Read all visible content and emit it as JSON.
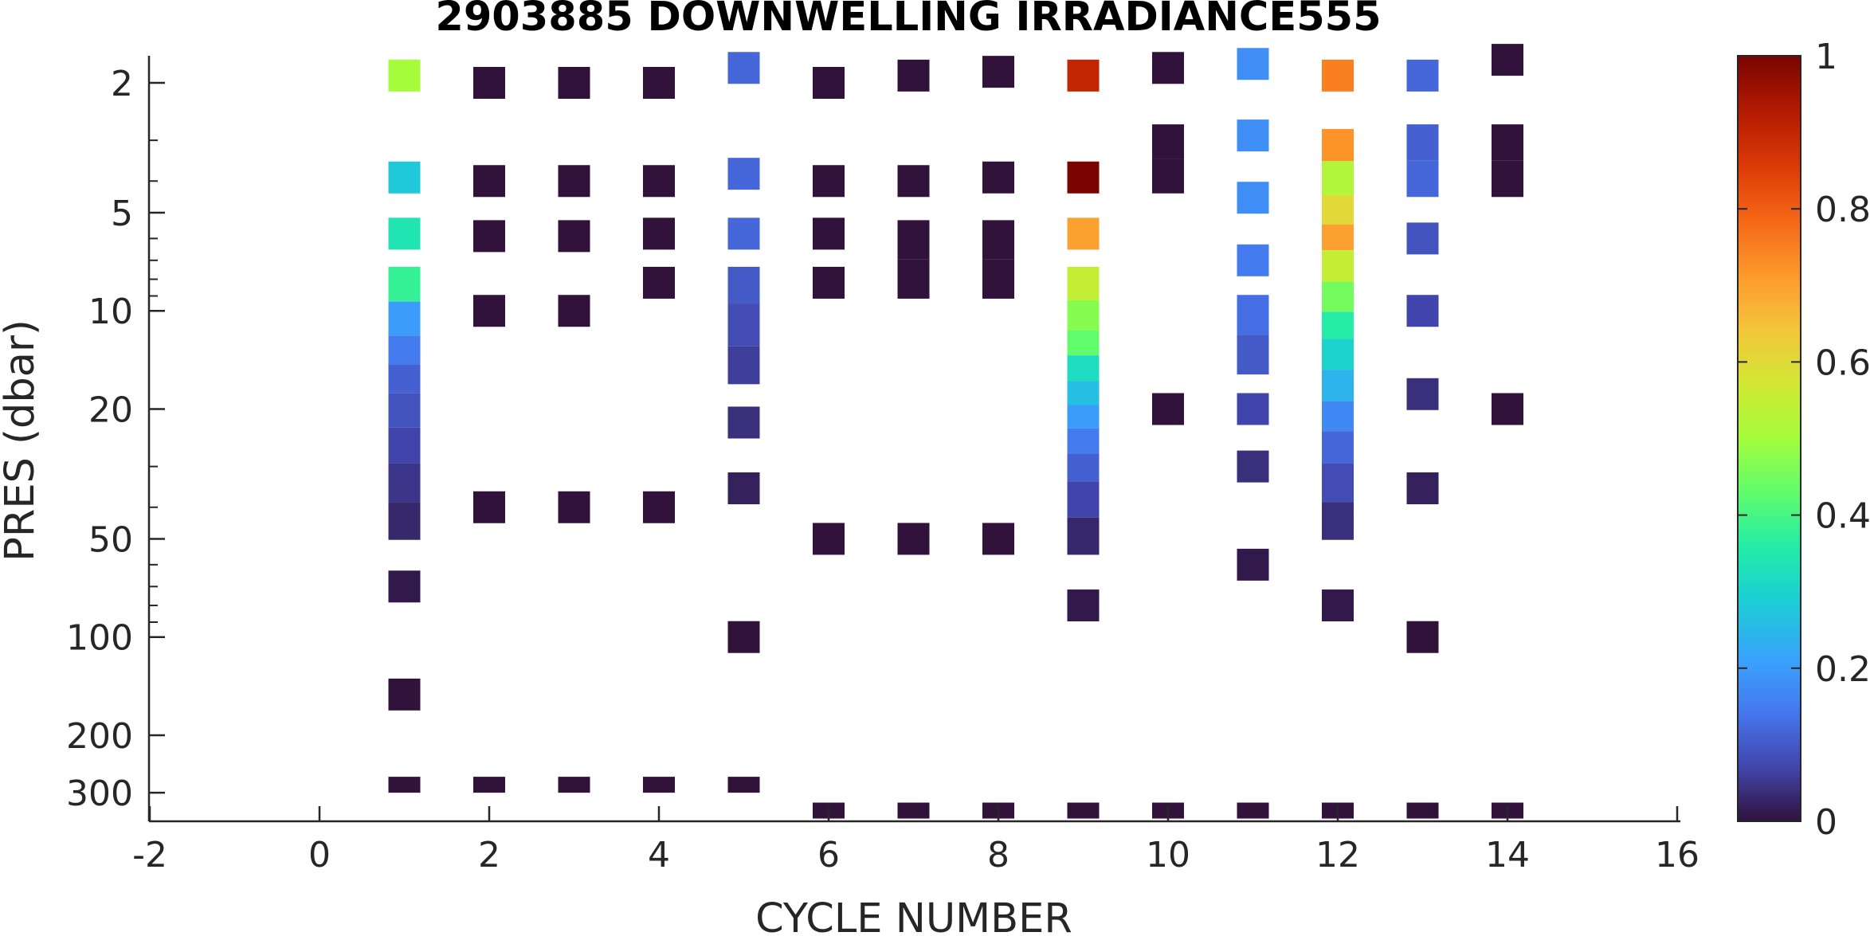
{
  "chart_data": {
    "type": "heatmap",
    "title": "2903885  DOWNWELLING IRRADIANCE555",
    "xlabel": "CYCLE NUMBER",
    "ylabel": "PRES (dbar)",
    "xlim": [
      -2,
      16
    ],
    "ylim": [
      1.6,
      360
    ],
    "yscale": "log",
    "y_reversed": true,
    "xticks": [
      -2,
      0,
      2,
      4,
      6,
      8,
      10,
      12,
      14,
      16
    ],
    "yticks": [
      2,
      5,
      10,
      20,
      50,
      100,
      200,
      300
    ],
    "colorbar": {
      "range": [
        0,
        1
      ],
      "ticks": [
        0,
        0.2,
        0.4,
        0.6,
        0.8,
        1
      ],
      "colormap": "turbo"
    },
    "grid": false,
    "profiles": [
      {
        "cycle": 1,
        "segments": [
          {
            "p": 1.9,
            "v": 0.5
          },
          {
            "p": 3.9,
            "v": 0.28
          },
          {
            "p": 5.8,
            "v": 0.34
          },
          {
            "p": 8.2,
            "v": 0.38
          },
          {
            "p": 10.7,
            "v": 0.2
          },
          {
            "p": 13.3,
            "v": 0.15
          },
          {
            "p": 16,
            "v": 0.11
          },
          {
            "p": 20,
            "v": 0.09
          },
          {
            "p": 26,
            "v": 0.07
          },
          {
            "p": 33,
            "v": 0.05
          },
          {
            "p": 45,
            "v": 0.03
          },
          {
            "p": 70,
            "v": 0.01
          },
          {
            "p": 150,
            "v": 0.0
          },
          {
            "p": 300,
            "v": 0.0
          }
        ]
      },
      {
        "cycle": 2,
        "segments": [
          {
            "p": 2.0,
            "v": 0.0
          },
          {
            "p": 4.0,
            "v": 0.0
          },
          {
            "p": 5.9,
            "v": 0.0
          },
          {
            "p": 10,
            "v": 0.0
          },
          {
            "p": 40,
            "v": 0.0
          },
          {
            "p": 300,
            "v": 0.0
          }
        ]
      },
      {
        "cycle": 3,
        "segments": [
          {
            "p": 2.0,
            "v": 0.0
          },
          {
            "p": 4.0,
            "v": 0.0
          },
          {
            "p": 5.9,
            "v": 0.0
          },
          {
            "p": 10,
            "v": 0.0
          },
          {
            "p": 40,
            "v": 0.0
          },
          {
            "p": 300,
            "v": 0.0
          }
        ]
      },
      {
        "cycle": 4,
        "segments": [
          {
            "p": 2.0,
            "v": 0.0
          },
          {
            "p": 4.0,
            "v": 0.0
          },
          {
            "p": 5.8,
            "v": 0.0
          },
          {
            "p": 8.2,
            "v": 0.0
          },
          {
            "p": 40,
            "v": 0.0
          },
          {
            "p": 300,
            "v": 0.0
          }
        ]
      },
      {
        "cycle": 5,
        "segments": [
          {
            "p": 1.8,
            "v": 0.12
          },
          {
            "p": 3.8,
            "v": 0.12
          },
          {
            "p": 5.8,
            "v": 0.12
          },
          {
            "p": 8.2,
            "v": 0.1
          },
          {
            "p": 11,
            "v": 0.08
          },
          {
            "p": 15,
            "v": 0.06
          },
          {
            "p": 22,
            "v": 0.04
          },
          {
            "p": 35,
            "v": 0.02
          },
          {
            "p": 100,
            "v": 0.0
          },
          {
            "p": 300,
            "v": 0.0
          }
        ]
      },
      {
        "cycle": 6,
        "segments": [
          {
            "p": 2.0,
            "v": 0.0
          },
          {
            "p": 4.0,
            "v": 0.0
          },
          {
            "p": 5.8,
            "v": 0.0
          },
          {
            "p": 8.2,
            "v": 0.0
          },
          {
            "p": 50,
            "v": 0.0
          },
          {
            "p": 360,
            "v": 0.0
          }
        ]
      },
      {
        "cycle": 7,
        "segments": [
          {
            "p": 1.9,
            "v": 0.0
          },
          {
            "p": 4.0,
            "v": 0.0
          },
          {
            "p": 5.9,
            "v": 0.0
          },
          {
            "p": 8.2,
            "v": 0.0
          },
          {
            "p": 50,
            "v": 0.0
          },
          {
            "p": 360,
            "v": 0.0
          }
        ]
      },
      {
        "cycle": 8,
        "segments": [
          {
            "p": 1.85,
            "v": 0.0
          },
          {
            "p": 3.9,
            "v": 0.0
          },
          {
            "p": 5.9,
            "v": 0.0
          },
          {
            "p": 8.2,
            "v": 0.0
          },
          {
            "p": 50,
            "v": 0.0
          },
          {
            "p": 360,
            "v": 0.0
          }
        ]
      },
      {
        "cycle": 9,
        "segments": [
          {
            "p": 1.9,
            "v": 0.9
          },
          {
            "p": 3.9,
            "v": 1.0
          },
          {
            "p": 5.8,
            "v": 0.7
          },
          {
            "p": 8.2,
            "v": 0.55
          },
          {
            "p": 10.5,
            "v": 0.47
          },
          {
            "p": 12.5,
            "v": 0.43
          },
          {
            "p": 15,
            "v": 0.32
          },
          {
            "p": 18,
            "v": 0.26
          },
          {
            "p": 21,
            "v": 0.2
          },
          {
            "p": 25,
            "v": 0.15
          },
          {
            "p": 30,
            "v": 0.11
          },
          {
            "p": 37,
            "v": 0.07
          },
          {
            "p": 50,
            "v": 0.03
          },
          {
            "p": 80,
            "v": 0.01
          },
          {
            "p": 360,
            "v": 0.0
          }
        ]
      },
      {
        "cycle": 10,
        "segments": [
          {
            "p": 1.8,
            "v": 0.0
          },
          {
            "p": 3.0,
            "v": 0.0
          },
          {
            "p": 3.9,
            "v": 0.0
          },
          {
            "p": 20,
            "v": 0.0
          },
          {
            "p": 360,
            "v": 0.0
          }
        ]
      },
      {
        "cycle": 11,
        "segments": [
          {
            "p": 1.75,
            "v": 0.18
          },
          {
            "p": 2.9,
            "v": 0.18
          },
          {
            "p": 4.5,
            "v": 0.18
          },
          {
            "p": 7,
            "v": 0.15
          },
          {
            "p": 10,
            "v": 0.13
          },
          {
            "p": 14,
            "v": 0.1
          },
          {
            "p": 20,
            "v": 0.07
          },
          {
            "p": 30,
            "v": 0.04
          },
          {
            "p": 60,
            "v": 0.01
          },
          {
            "p": 360,
            "v": 0.0
          }
        ]
      },
      {
        "cycle": 12,
        "segments": [
          {
            "p": 1.9,
            "v": 0.75
          },
          {
            "p": 3.1,
            "v": 0.72
          },
          {
            "p": 3.9,
            "v": 0.52
          },
          {
            "p": 5.0,
            "v": 0.6
          },
          {
            "p": 5.9,
            "v": 0.7
          },
          {
            "p": 7.2,
            "v": 0.55
          },
          {
            "p": 9.2,
            "v": 0.45
          },
          {
            "p": 11,
            "v": 0.36
          },
          {
            "p": 13.5,
            "v": 0.3
          },
          {
            "p": 17,
            "v": 0.24
          },
          {
            "p": 21,
            "v": 0.17
          },
          {
            "p": 26,
            "v": 0.12
          },
          {
            "p": 33,
            "v": 0.08
          },
          {
            "p": 45,
            "v": 0.04
          },
          {
            "p": 80,
            "v": 0.01
          },
          {
            "p": 360,
            "v": 0.0
          }
        ]
      },
      {
        "cycle": 13,
        "segments": [
          {
            "p": 1.9,
            "v": 0.12
          },
          {
            "p": 3.0,
            "v": 0.11
          },
          {
            "p": 4.0,
            "v": 0.12
          },
          {
            "p": 6,
            "v": 0.09
          },
          {
            "p": 10,
            "v": 0.07
          },
          {
            "p": 18,
            "v": 0.04
          },
          {
            "p": 35,
            "v": 0.02
          },
          {
            "p": 100,
            "v": 0.0
          },
          {
            "p": 360,
            "v": 0.0
          }
        ]
      },
      {
        "cycle": 14,
        "segments": [
          {
            "p": 1.7,
            "v": 0.0
          },
          {
            "p": 3.0,
            "v": 0.0
          },
          {
            "p": 4.0,
            "v": 0.0
          },
          {
            "p": 20,
            "v": 0.0
          },
          {
            "p": 360,
            "v": 0.0
          }
        ]
      }
    ]
  }
}
